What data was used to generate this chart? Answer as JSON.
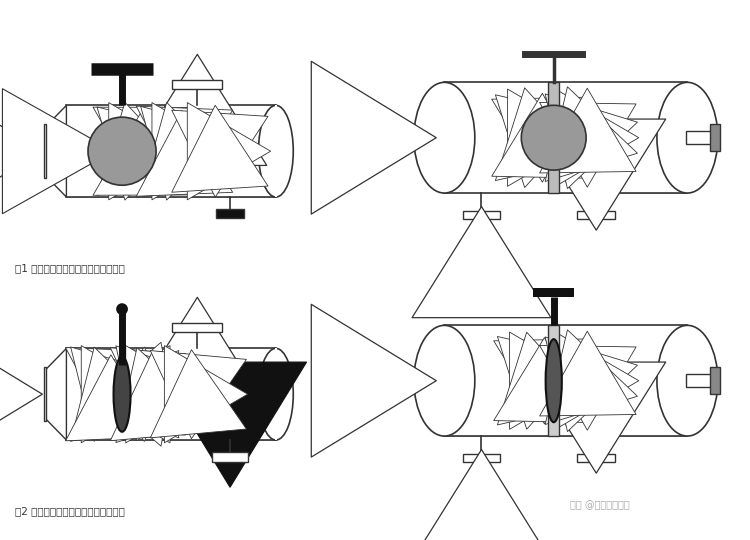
{
  "background": "#ffffff",
  "fig1_label": "图1 正常过滤状态（水流导向阀开启）",
  "fig2_label": "图2 反洗排污状态（水流导向阀关闭）",
  "watermark": "知乎 @全球时尚家居",
  "lc": "#333333",
  "hatch_fc": "#eeeeee",
  "gray_disc": "#999999",
  "dark": "#111111",
  "mid_gray": "#aaaaaa"
}
